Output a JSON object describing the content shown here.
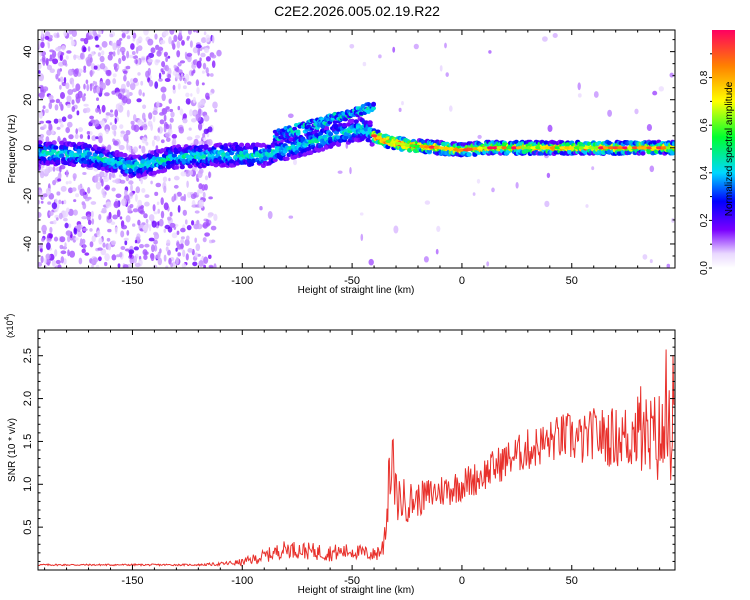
{
  "title": "C2E2.2026.005.02.19.R22",
  "colorbar": {
    "label": "Normalized spectral amplitude",
    "ticks": [
      "0.0",
      "0.2",
      "0.4",
      "0.6",
      "0.8"
    ],
    "tick_values": [
      0.0,
      0.2,
      0.4,
      0.6,
      0.8
    ],
    "range": [
      0,
      1
    ]
  },
  "chart_data": [
    {
      "type": "heatmap",
      "xlabel": "Height of straight line (km)",
      "ylabel": "Frequency (Hz)",
      "xlim": [
        -193,
        97
      ],
      "ylim": [
        -50,
        49
      ],
      "xticks": [
        -150,
        -100,
        -50,
        0,
        50
      ],
      "xtick_labels": [
        "-150",
        "-100",
        "-50",
        "0",
        "50"
      ],
      "yticks": [
        -40,
        -20,
        0,
        20,
        40
      ],
      "ytick_labels": [
        "-40",
        "-20",
        "0",
        "20",
        "40"
      ],
      "grid": false,
      "band_center": {
        "x": [
          -193,
          -170,
          -150,
          -130,
          -110,
          -90,
          -70,
          -55,
          -45,
          -40,
          -35,
          -25,
          -10,
          0,
          10,
          30,
          50,
          70,
          97
        ],
        "y": [
          -2,
          -3,
          -8,
          -4,
          -3,
          -3,
          2,
          6,
          8,
          5,
          3,
          1,
          0,
          -1,
          0,
          0,
          0,
          0,
          0
        ]
      },
      "upper_branch": {
        "x": [
          -85,
          -70,
          -55,
          -45,
          -40
        ],
        "y": [
          5,
          9,
          13,
          16,
          17
        ]
      }
    },
    {
      "type": "line",
      "xlabel": "Height of straight line (km)",
      "ylabel": "SNR (10 * v/v)",
      "y_multiplier_label": "(x10",
      "y_multiplier_exp": "4",
      "xlim": [
        -193,
        97
      ],
      "ylim": [
        0,
        2.8
      ],
      "xticks": [
        -150,
        -100,
        -50,
        0,
        50
      ],
      "xtick_labels": [
        "-150",
        "-100",
        "-50",
        "0",
        "50"
      ],
      "yticks": [
        0.5,
        1.0,
        1.5,
        2.0,
        2.5
      ],
      "ytick_labels": [
        "0.5",
        "1.0",
        "1.5",
        "2.0",
        "2.5"
      ],
      "grid": false,
      "series": [
        {
          "color": "#e8302b",
          "x": [
            -193,
            -180,
            -160,
            -140,
            -120,
            -110,
            -100,
            -90,
            -80,
            -70,
            -60,
            -50,
            -40,
            -36,
            -33,
            -30,
            -25,
            -20,
            -15,
            -10,
            -5,
            0,
            5,
            10,
            15,
            20,
            25,
            30,
            35,
            40,
            45,
            50,
            55,
            60,
            65,
            70,
            75,
            80,
            85,
            90,
            97
          ],
          "y": [
            0.06,
            0.06,
            0.06,
            0.06,
            0.06,
            0.07,
            0.09,
            0.16,
            0.25,
            0.22,
            0.2,
            0.22,
            0.18,
            0.25,
            0.95,
            0.85,
            0.8,
            0.82,
            0.88,
            0.92,
            0.95,
            1.0,
            1.05,
            1.12,
            1.2,
            1.28,
            1.35,
            1.4,
            1.45,
            1.5,
            1.55,
            1.55,
            1.5,
            1.6,
            1.55,
            1.55,
            1.55,
            1.6,
            1.5,
            1.55,
            1.5
          ],
          "spread": [
            0.01,
            0.01,
            0.01,
            0.01,
            0.01,
            0.02,
            0.04,
            0.08,
            0.1,
            0.1,
            0.1,
            0.09,
            0.08,
            0.15,
            0.4,
            0.3,
            0.25,
            0.2,
            0.2,
            0.2,
            0.2,
            0.2,
            0.2,
            0.2,
            0.22,
            0.22,
            0.22,
            0.25,
            0.25,
            0.25,
            0.28,
            0.3,
            0.3,
            0.3,
            0.35,
            0.35,
            0.4,
            0.45,
            0.55,
            0.55,
            0.5
          ]
        }
      ]
    }
  ]
}
